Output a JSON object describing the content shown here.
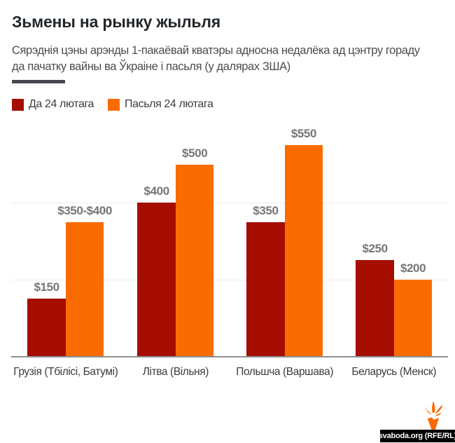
{
  "header": {
    "title": "Зьмены на рынку жыльля",
    "subtitle_line1": "Сярэднія цэны арэнды 1-пакаёвай кватэры адносна недалёка ад цэнтру гораду",
    "subtitle_line2": "да пачатку вайны ва Ўкраіне і пасьля (у далярах ЗША)"
  },
  "legend": {
    "items": [
      {
        "label": "Да 24 лютага",
        "color": "#a50d00"
      },
      {
        "label": "Пасьля 24 лютага",
        "color": "#fb6c00"
      }
    ]
  },
  "chart_data": {
    "type": "bar",
    "title": "Зьмены на рынку жыльля",
    "subtitle": "Сярэднія цэны арэнды 1-пакаёвай кватэры адносна недалёка ад цэнтру гораду да пачатку вайны ва Ўкраіне і пасьля (у далярах ЗША)",
    "units": "USD",
    "categories": [
      "Грузія (Тбілісі, Батумі)",
      "Літва (Вільня)",
      "Польшча (Варшава)",
      "Беларусь (Менск)"
    ],
    "series": [
      {
        "name": "Да 24 лютага",
        "color": "#a50d00",
        "values": [
          150,
          400,
          350,
          250
        ],
        "value_labels": [
          "$150",
          "$400",
          "$350",
          "$250"
        ]
      },
      {
        "name": "Пасьля 24 лютага",
        "color": "#fb6c00",
        "values": [
          350,
          500,
          550,
          200
        ],
        "value_labels": [
          "$350-$400",
          "$500",
          "$550",
          "$200"
        ]
      }
    ],
    "xlabel": "",
    "ylabel": "",
    "ylim": [
      0,
      620
    ],
    "gridline_values": [
      200,
      400
    ],
    "grid": "horizontal",
    "legend_position": "top-left",
    "value_labels_shown": true,
    "y_axis_tick_labels_shown": false
  },
  "footer": {
    "source_label": "svaboda.org (RFE/RL)"
  },
  "colors": {
    "before_bar": "#a50d00",
    "after_bar": "#fb6c00",
    "divider": "#45484c",
    "gridline": "#ececec",
    "axis_line": "#8f8f8f",
    "value_label_text": "#767676",
    "torch_orange": "#f96a07"
  }
}
